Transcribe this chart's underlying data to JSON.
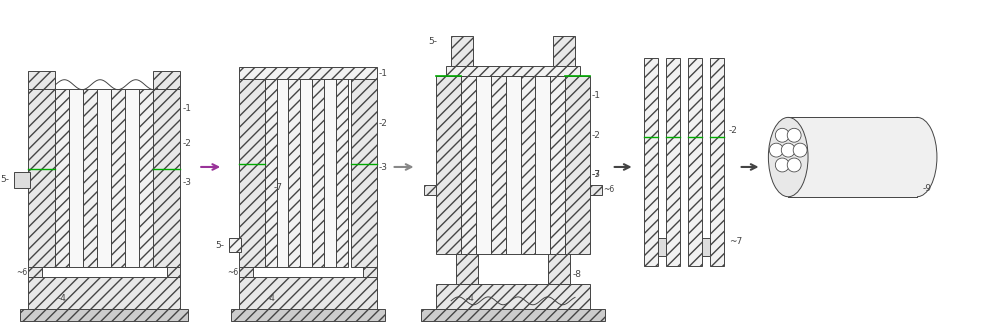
{
  "bg_color": "#ffffff",
  "fig_width": 10.0,
  "fig_height": 3.27,
  "dpi": 100,
  "hatch": "///",
  "fc_main": "#e8e8e8",
  "fc_light": "#f2f2f2",
  "fc_ground": "#cccccc",
  "ec": "#444444",
  "green": "#00aa00",
  "purple": "#993399",
  "lw": 0.7,
  "lbl_fs": 6.5
}
